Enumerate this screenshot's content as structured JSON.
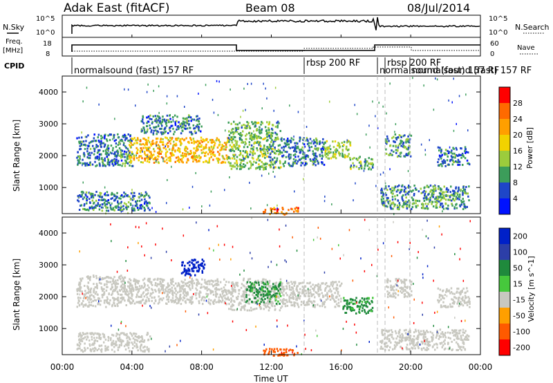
{
  "header": {
    "site": "Adak East (fitACF)",
    "beam": "Beam 08",
    "date": "08/Jul/2014"
  },
  "nsky_panel": {
    "left_label": "N.Sky",
    "right_label": "N.Search",
    "left_ticks": [
      "10^5",
      "10^0"
    ],
    "right_ticks": [
      "10^5",
      "10^0"
    ]
  },
  "freq_panel": {
    "left_label": "Freq.",
    "left_unit": "[MHz]",
    "right_label": "Nave",
    "left_ticks": [
      "18",
      "8"
    ],
    "right_ticks": [
      "60",
      "0"
    ]
  },
  "cpid": {
    "label": "CPID",
    "programs": [
      {
        "name": "normalsound (fast) 157 RF"
      },
      {
        "name": "rbsp 200 RF"
      },
      {
        "name": "normalsound (fast) 157 RF"
      },
      {
        "name": "rbsp 200 RF"
      },
      {
        "name": "normalsound (fast) 157 RF"
      }
    ]
  },
  "chart_data": [
    {
      "type": "heatmap",
      "parameter": "Power",
      "ylabel": "Slant Range [km]",
      "ylim": [
        180,
        4500
      ],
      "yticks": [
        "1000",
        "2000",
        "3000",
        "4000"
      ],
      "xlim_hours": [
        0,
        24
      ],
      "colorbar": {
        "label": "Power [dB]",
        "ticks": [
          "28",
          "24",
          "20",
          "16",
          "12",
          "8",
          "4"
        ],
        "colors": [
          "#ff0000",
          "#ff6a00",
          "#ff9f00",
          "#f2d200",
          "#9ccc3c",
          "#3c9d5a",
          "#1e46c8",
          "#0012ff"
        ],
        "range": [
          0,
          32
        ]
      },
      "echo_regions": [
        {
          "t_start": 0.8,
          "t_end": 4.0,
          "r_start": 1700,
          "r_end": 2700,
          "db": 8
        },
        {
          "t_start": 3.8,
          "t_end": 9.5,
          "r_start": 1800,
          "r_end": 2600,
          "db": 20
        },
        {
          "t_start": 4.5,
          "t_end": 8.0,
          "r_start": 2700,
          "r_end": 3300,
          "db": 8
        },
        {
          "t_start": 9.5,
          "t_end": 12.5,
          "r_start": 1600,
          "r_end": 3100,
          "db": 12
        },
        {
          "t_start": 12.5,
          "t_end": 15.0,
          "r_start": 1700,
          "r_end": 2600,
          "db": 8
        },
        {
          "t_start": 15.0,
          "t_end": 16.5,
          "r_start": 1900,
          "r_end": 2500,
          "db": 14
        },
        {
          "t_start": 16.5,
          "t_end": 17.8,
          "r_start": 1600,
          "r_end": 2000,
          "db": 12
        },
        {
          "t_start": 18.5,
          "t_end": 20.0,
          "r_start": 2000,
          "r_end": 2700,
          "db": 10
        },
        {
          "t_start": 21.5,
          "t_end": 23.4,
          "r_start": 1700,
          "r_end": 2300,
          "db": 8
        },
        {
          "t_start": 0.8,
          "t_end": 5.0,
          "r_start": 300,
          "r_end": 900,
          "db": 8
        },
        {
          "t_start": 18.2,
          "t_end": 23.3,
          "r_start": 350,
          "r_end": 1100,
          "db": 10
        },
        {
          "t_start": 11.5,
          "t_end": 13.5,
          "r_start": 180,
          "r_end": 400,
          "db": 24
        }
      ]
    },
    {
      "type": "heatmap",
      "parameter": "Velocity",
      "ylabel": "Slant Range [km]",
      "ylim": [
        180,
        4500
      ],
      "yticks": [
        "1000",
        "2000",
        "3000",
        "4000"
      ],
      "xlabel": "Time UT",
      "xticks": [
        "00:00",
        "04:00",
        "08:00",
        "12:00",
        "16:00",
        "20:00",
        "00:00"
      ],
      "xlim_hours": [
        0,
        24
      ],
      "colorbar": {
        "label": "Velocity [m s^-1]",
        "ticks": [
          "200",
          "100",
          "50",
          "15",
          "-15",
          "-50",
          "-100",
          "-200"
        ],
        "colors": [
          "#0020c8",
          "#2c3ea8",
          "#1f8a3c",
          "#46c83c",
          "#c8c8c0",
          "#ff9f00",
          "#ff5a00",
          "#ff0000"
        ],
        "range": [
          -250,
          250
        ]
      },
      "echo_regions": [
        {
          "t_start": 0.8,
          "t_end": 4.0,
          "r_start": 1700,
          "r_end": 2700,
          "v": 0
        },
        {
          "t_start": 3.8,
          "t_end": 9.5,
          "r_start": 1800,
          "r_end": 2600,
          "v": 0
        },
        {
          "t_start": 9.5,
          "t_end": 12.5,
          "r_start": 1600,
          "r_end": 2600,
          "v": 0
        },
        {
          "t_start": 10.5,
          "t_end": 12.5,
          "r_start": 1800,
          "r_end": 2500,
          "v": 40
        },
        {
          "t_start": 6.8,
          "t_end": 8.2,
          "r_start": 2700,
          "r_end": 3200,
          "v": 200
        },
        {
          "t_start": 12.5,
          "t_end": 16.0,
          "r_start": 1700,
          "r_end": 2500,
          "v": 0
        },
        {
          "t_start": 16.0,
          "t_end": 17.8,
          "r_start": 1500,
          "r_end": 2000,
          "v": 40
        },
        {
          "t_start": 18.5,
          "t_end": 20.0,
          "r_start": 2000,
          "r_end": 2600,
          "v": 0
        },
        {
          "t_start": 21.5,
          "t_end": 23.4,
          "r_start": 1700,
          "r_end": 2300,
          "v": 0
        },
        {
          "t_start": 0.8,
          "t_end": 5.0,
          "r_start": 300,
          "r_end": 900,
          "v": 0
        },
        {
          "t_start": 18.2,
          "t_end": 23.3,
          "r_start": 350,
          "r_end": 1000,
          "v": 0
        },
        {
          "t_start": 11.5,
          "t_end": 13.5,
          "r_start": 180,
          "r_end": 400,
          "v": -60
        }
      ]
    }
  ]
}
